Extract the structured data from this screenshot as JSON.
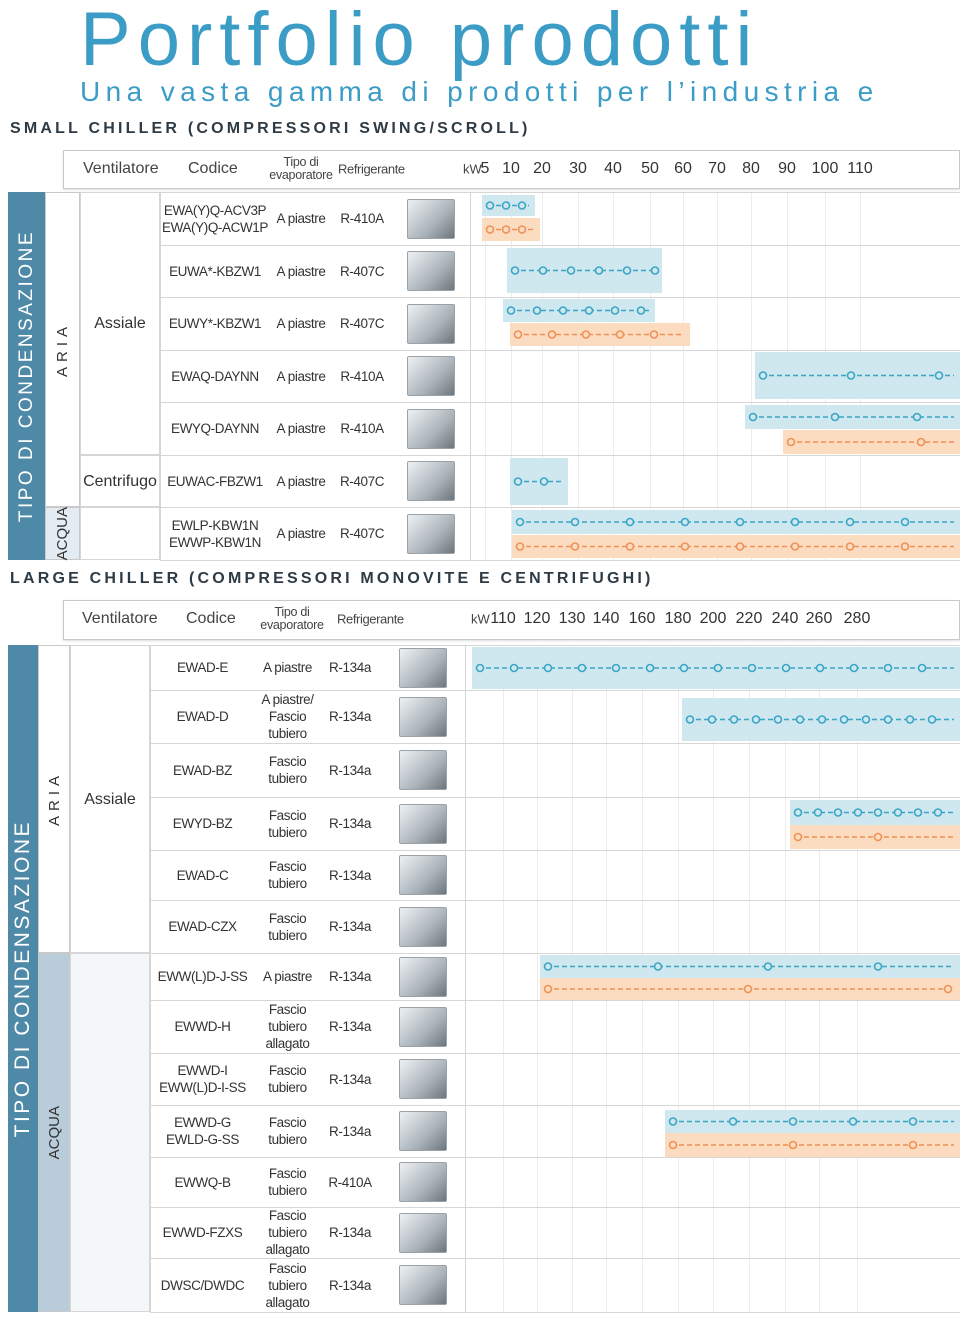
{
  "header": {
    "title": "Portfolio prodotti",
    "subtitle": "Una vasta gamma di prodotti per l’industria e"
  },
  "sections": [
    {
      "title": "SMALL CHILLER (COMPRESSORI SWING/SCROLL)",
      "columns": [
        "Ventilatore",
        "Codice",
        [
          "Tipo di",
          "evaporatore"
        ],
        "Refrigerante"
      ],
      "unit": "kW",
      "scale": [
        5,
        10,
        20,
        30,
        40,
        50,
        60,
        70,
        80,
        90,
        100,
        110
      ],
      "side_label": "TIPO DI CONDENSAZIONE",
      "groups": [
        {
          "label": "ARIA"
        },
        {
          "label": "ACQUA"
        }
      ],
      "fans": [
        {
          "label": "Assiale"
        },
        {
          "label": "Centrifugo"
        }
      ],
      "rows": [
        {
          "code": [
            "EWA(Y)Q-ACV3P",
            "EWA(Y)Q-ACW1P"
          ],
          "evaporator": [
            "A piastre"
          ],
          "refrigerant": "R-410A"
        },
        {
          "code": [
            "EUWA*-KBZW1"
          ],
          "evaporator": [
            "A piastre"
          ],
          "refrigerant": "R-407C"
        },
        {
          "code": [
            "EUWY*-KBZW1"
          ],
          "evaporator": [
            "A piastre"
          ],
          "refrigerant": "R-407C"
        },
        {
          "code": [
            "EWAQ-DAYNN"
          ],
          "evaporator": [
            "A piastre"
          ],
          "refrigerant": "R-410A"
        },
        {
          "code": [
            "EWYQ-DAYNN"
          ],
          "evaporator": [
            "A piastre"
          ],
          "refrigerant": "R-410A"
        },
        {
          "code": [
            "EUWAC-FBZW1"
          ],
          "evaporator": [
            "A piastre"
          ],
          "refrigerant": "R-407C"
        },
        {
          "code": [
            "EWLP-KBW1N",
            "EWWP-KBW1N"
          ],
          "evaporator": [
            "A piastre"
          ],
          "refrigerant": "R-407C"
        }
      ]
    },
    {
      "title": "LARGE CHILLER (COMPRESSORI MONOVITE E CENTRIFUGHI)",
      "columns": [
        "Ventilatore",
        "Codice",
        [
          "Tipo di",
          "evaporatore"
        ],
        "Refrigerante"
      ],
      "unit": "kW",
      "scale": [
        110,
        120,
        130,
        140,
        160,
        180,
        200,
        220,
        240,
        260,
        280
      ],
      "side_label": "TIPO DI CONDENSAZIONE",
      "groups": [
        {
          "label": "ARIA"
        },
        {
          "label": "ACQUA"
        }
      ],
      "fans": [
        {
          "label": "Assiale"
        }
      ],
      "rows": [
        {
          "code": [
            "EWAD-E"
          ],
          "evaporator": [
            "A piastre"
          ],
          "refrigerant": "R-134a"
        },
        {
          "code": [
            "EWAD-D"
          ],
          "evaporator": [
            "A piastre/",
            "Fascio",
            "tubiero"
          ],
          "refrigerant": "R-134a"
        },
        {
          "code": [
            "EWAD-BZ"
          ],
          "evaporator": [
            "Fascio",
            "tubiero"
          ],
          "refrigerant": "R-134a"
        },
        {
          "code": [
            "EWYD-BZ"
          ],
          "evaporator": [
            "Fascio",
            "tubiero"
          ],
          "refrigerant": "R-134a"
        },
        {
          "code": [
            "EWAD-C"
          ],
          "evaporator": [
            "Fascio",
            "tubiero"
          ],
          "refrigerant": "R-134a"
        },
        {
          "code": [
            "EWAD-CZX"
          ],
          "evaporator": [
            "Fascio",
            "tubiero"
          ],
          "refrigerant": "R-134a"
        },
        {
          "code": [
            "EWW(L)D-J-SS"
          ],
          "evaporator": [
            "A piastre"
          ],
          "refrigerant": "R-134a"
        },
        {
          "code": [
            "EWWD-H"
          ],
          "evaporator": [
            "Fascio",
            "tubiero",
            "allagato"
          ],
          "refrigerant": "R-134a"
        },
        {
          "code": [
            "EWWD-I",
            "EWW(L)D-I-SS"
          ],
          "evaporator": [
            "Fascio",
            "tubiero"
          ],
          "refrigerant": "R-134a"
        },
        {
          "code": [
            "EWWD-G",
            "EWLD-G-SS"
          ],
          "evaporator": [
            "Fascio",
            "tubiero"
          ],
          "refrigerant": "R-134a"
        },
        {
          "code": [
            "EWWQ-B"
          ],
          "evaporator": [
            "Fascio",
            "tubiero"
          ],
          "refrigerant": "R-410A"
        },
        {
          "code": [
            "EWWD-FZXS"
          ],
          "evaporator": [
            "Fascio",
            "tubiero",
            "allagato"
          ],
          "refrigerant": "R-134a"
        },
        {
          "code": [
            "DWSC/DWDC"
          ],
          "evaporator": [
            "Fascio",
            "tubiero",
            "allagato"
          ],
          "refrigerant": "R-134a"
        }
      ]
    }
  ]
}
